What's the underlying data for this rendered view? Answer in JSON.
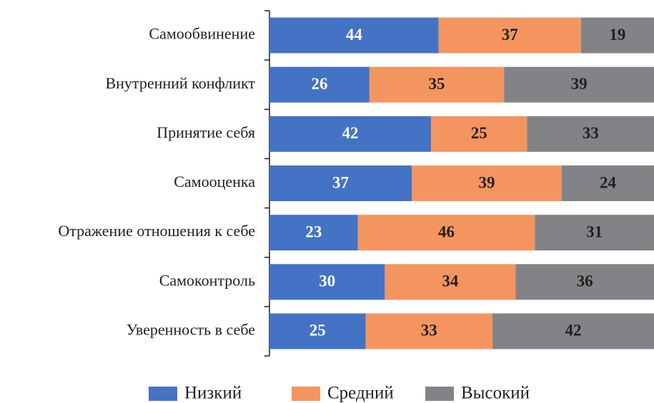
{
  "chart_data": {
    "type": "stacked_barh",
    "categories": [
      "Самообвинение",
      "Внутренний конфликт",
      "Принятие себя",
      "Самооценка",
      "Отражение отношения к себе",
      "Самоконтроль",
      "Уверенность в себе"
    ],
    "series": [
      {
        "name": "Низкий",
        "color": "#4472c4",
        "label_color": "#ffffff",
        "values": [
          44,
          26,
          42,
          37,
          23,
          30,
          25
        ]
      },
      {
        "name": "Средний",
        "color": "#f4955f",
        "label_color": "#231f20",
        "values": [
          37,
          35,
          25,
          39,
          46,
          34,
          33
        ]
      },
      {
        "name": "Высокий",
        "color": "#818386",
        "label_color": "#231f20",
        "values": [
          19,
          39,
          33,
          24,
          31,
          36,
          42
        ]
      }
    ],
    "xlim": [
      0,
      100
    ],
    "legend": "bottom"
  }
}
